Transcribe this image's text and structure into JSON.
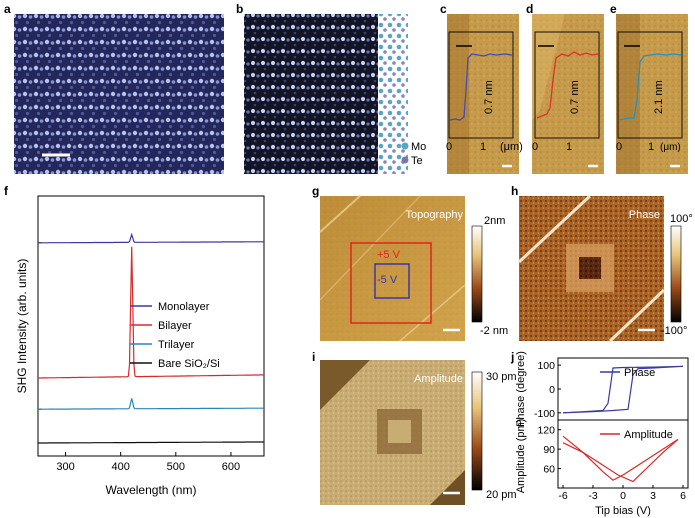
{
  "panels": {
    "a": {
      "label": "a"
    },
    "b": {
      "label": "b",
      "legend": [
        "Mo",
        "Te"
      ],
      "legend_colors": [
        "#5aa4c8",
        "#7a78a8"
      ]
    },
    "c": {
      "label": "c",
      "height_text": "0.7 nm",
      "line_color": "#4a4ab0",
      "x_ticks": [
        "0",
        "1"
      ]
    },
    "d": {
      "label": "d",
      "height_text": "0.7 nm",
      "line_color": "#e0302a",
      "x_ticks": [
        "0",
        "1"
      ]
    },
    "e": {
      "label": "e",
      "height_text": "2.1 nm",
      "line_color": "#2a90c0",
      "x_ticks": [
        "0",
        "1"
      ],
      "x_unit": "(μm)"
    },
    "cd_unit": "(μm)",
    "f": {
      "label": "f"
    },
    "g": {
      "label": "g",
      "title": "Topography",
      "box_outer": "+5 V",
      "box_inner": "-5 V",
      "cbar": [
        "2nm",
        "-2 nm"
      ]
    },
    "h": {
      "label": "h",
      "title": "Phase",
      "cbar": [
        "100°",
        "-100°"
      ]
    },
    "i": {
      "label": "i",
      "title": "Amplitude",
      "cbar": [
        "30 pm",
        "20 pm"
      ]
    },
    "j": {
      "label": "j"
    }
  },
  "chart_data": [
    {
      "type": "line",
      "panel": "f",
      "xlabel": "Wavelength (nm)",
      "ylabel": "SHG Intensity (arb. units)",
      "xlim": [
        250,
        660
      ],
      "x_ticks": [
        "300",
        "400",
        "500",
        "600"
      ],
      "x_tick_values": [
        300,
        400,
        500,
        600
      ],
      "series": [
        {
          "name": "Monolayer",
          "color": "#3a3aa0",
          "baseline": 0.82,
          "peak_x": 420,
          "peak_h": 0.03
        },
        {
          "name": "Bilayer",
          "color": "#d82a2a",
          "baseline": 0.3,
          "peak_x": 420,
          "peak_h": 0.5
        },
        {
          "name": "Trilayer",
          "color": "#2a86b8",
          "baseline": 0.18,
          "peak_x": 420,
          "peak_h": 0.04
        },
        {
          "name": "Bare SiO₂/Si",
          "color": "#111111",
          "baseline": 0.05,
          "peak_x": 420,
          "peak_h": 0.0
        }
      ]
    },
    {
      "type": "line",
      "panel": "j-top",
      "legend": "Phase",
      "ylabel": "Phase (degree)",
      "ylim": [
        -130,
        130
      ],
      "y_ticks": [
        "100",
        "0",
        "-100"
      ],
      "y_tick_values": [
        100,
        0,
        -100
      ],
      "xlim": [
        -6.5,
        6.5
      ],
      "color": "#3a3aa0",
      "forward": [
        [
          -6,
          -100
        ],
        [
          -3,
          -95
        ],
        [
          -1,
          -90
        ],
        [
          0.5,
          -85
        ],
        [
          1,
          60
        ],
        [
          1.5,
          85
        ],
        [
          3,
          88
        ],
        [
          6,
          95
        ]
      ],
      "backward": [
        [
          6,
          95
        ],
        [
          3,
          92
        ],
        [
          0,
          90
        ],
        [
          -1,
          88
        ],
        [
          -1.5,
          -60
        ],
        [
          -2,
          -90
        ],
        [
          -4,
          -95
        ],
        [
          -6,
          -100
        ]
      ]
    },
    {
      "type": "line",
      "panel": "j-bottom",
      "legend": "Amplitude",
      "ylabel": "Amplitude (pm)",
      "xlabel": "Tip bias (V)",
      "ylim": [
        30,
        135
      ],
      "y_ticks": [
        "120",
        "90",
        "60"
      ],
      "y_tick_values": [
        120,
        90,
        60
      ],
      "xlim": [
        -6.5,
        6.5
      ],
      "x_ticks": [
        "-6",
        "-3",
        "0",
        "3",
        "6"
      ],
      "x_tick_values": [
        -6,
        -3,
        0,
        3,
        6
      ],
      "color": "#d82a2a",
      "forward": [
        [
          -6,
          100
        ],
        [
          -4,
          85
        ],
        [
          -2,
          65
        ],
        [
          -0.5,
          50
        ],
        [
          1,
          40
        ],
        [
          2,
          55
        ],
        [
          4,
          85
        ],
        [
          5.5,
          105
        ]
      ],
      "backward": [
        [
          5.5,
          105
        ],
        [
          4,
          90
        ],
        [
          2,
          70
        ],
        [
          0,
          50
        ],
        [
          -1,
          42
        ],
        [
          -2,
          55
        ],
        [
          -4,
          85
        ],
        [
          -6,
          110
        ]
      ]
    }
  ]
}
